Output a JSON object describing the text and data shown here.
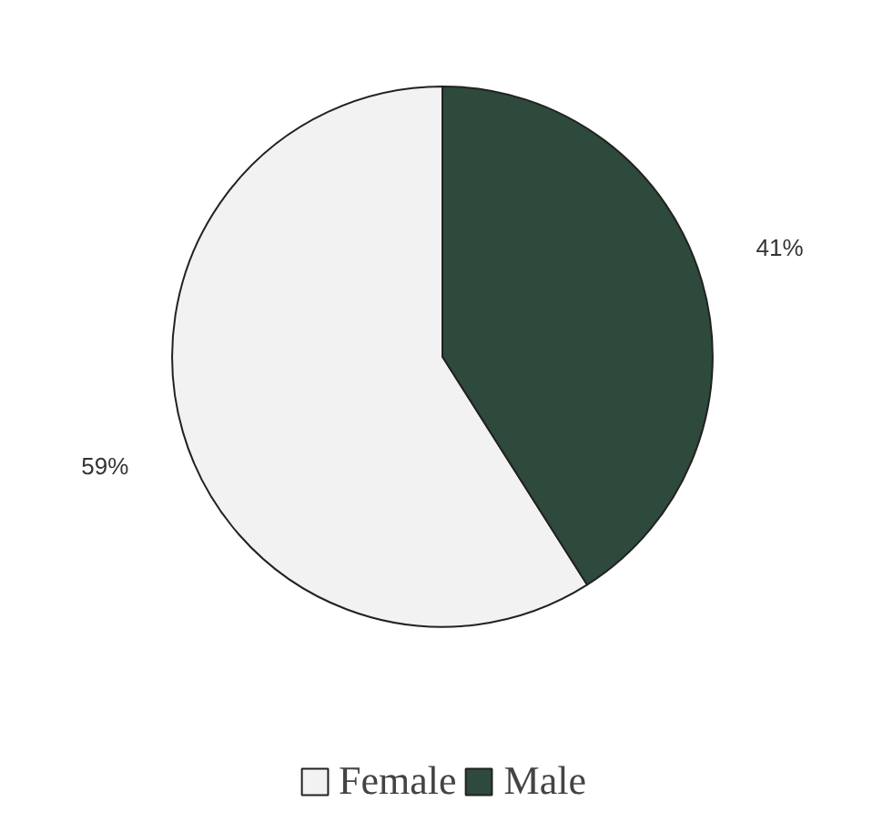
{
  "chart_data": {
    "type": "pie",
    "categories": [
      "Female",
      "Male"
    ],
    "values": [
      59,
      41
    ],
    "colors": [
      "#f2f2f2",
      "#2e4a3c"
    ],
    "value_labels": [
      "59%",
      "41%"
    ],
    "legend": "bottom"
  }
}
